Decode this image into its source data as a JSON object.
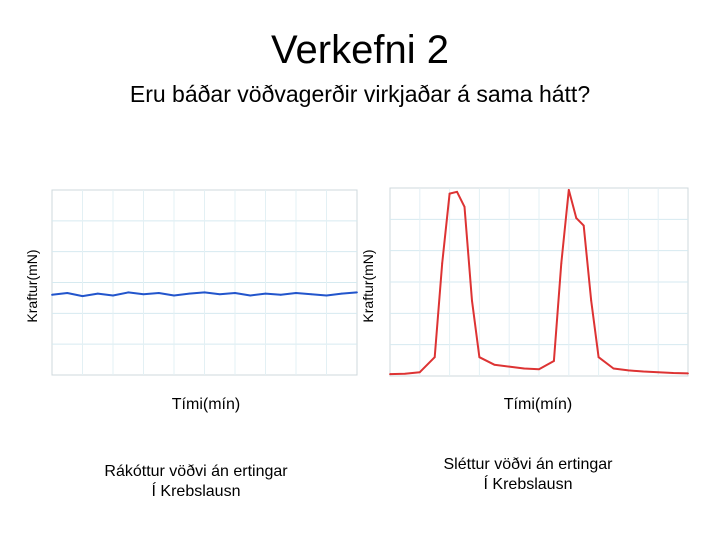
{
  "slide": {
    "title": "Verkefni 2",
    "subtitle": "Eru báðar vöðvagerðir virkjaðar á sama hátt?"
  },
  "panels": [
    {
      "ylabel": "Kraftur(mN)",
      "xlabel": "Tími(mín)",
      "caption_line1": "Rákóttur vöðvi án ertingar",
      "caption_line2": "Í Krebslausn",
      "line_color": "#2255cc"
    },
    {
      "ylabel": "Kraftur(mN)",
      "xlabel": "Tími(mín)",
      "caption_line1": "Sléttur vöðvi án ertingar",
      "caption_line2": "Í Krebslausn",
      "line_color": "#dd3333"
    }
  ],
  "chart_data": [
    {
      "type": "line",
      "ylabel": "Kraftur(mN)",
      "xlabel": "Tími(mín)",
      "x": [
        0,
        1,
        2,
        3,
        4,
        5,
        6,
        7,
        8,
        9,
        10,
        11,
        12,
        13,
        14,
        15,
        16,
        17,
        18,
        19,
        20
      ],
      "values": [
        28.0,
        28.3,
        27.8,
        28.2,
        27.9,
        28.4,
        28.1,
        28.3,
        27.9,
        28.2,
        28.4,
        28.1,
        28.3,
        27.9,
        28.2,
        28.0,
        28.3,
        28.1,
        27.9,
        28.2,
        28.4
      ],
      "ylim": [
        15,
        45
      ]
    },
    {
      "type": "line",
      "ylabel": "Kraftur(mN)",
      "xlabel": "Tími(mín)",
      "x": [
        0,
        1,
        2,
        3,
        3.5,
        4,
        4.5,
        5,
        5.5,
        6,
        7,
        8,
        9,
        10,
        11,
        11.5,
        12,
        12.5,
        13,
        13.5,
        14,
        15,
        16,
        17,
        18,
        19,
        20
      ],
      "values": [
        0.5,
        0.6,
        1.0,
        5.0,
        30.0,
        48.5,
        49.0,
        45.0,
        20.0,
        5.0,
        3.0,
        2.5,
        2.0,
        1.8,
        4.0,
        30.0,
        49.5,
        42.0,
        40.0,
        20.0,
        5.0,
        2.0,
        1.5,
        1.2,
        1.0,
        0.8,
        0.7
      ],
      "ylim": [
        0,
        50
      ]
    }
  ]
}
